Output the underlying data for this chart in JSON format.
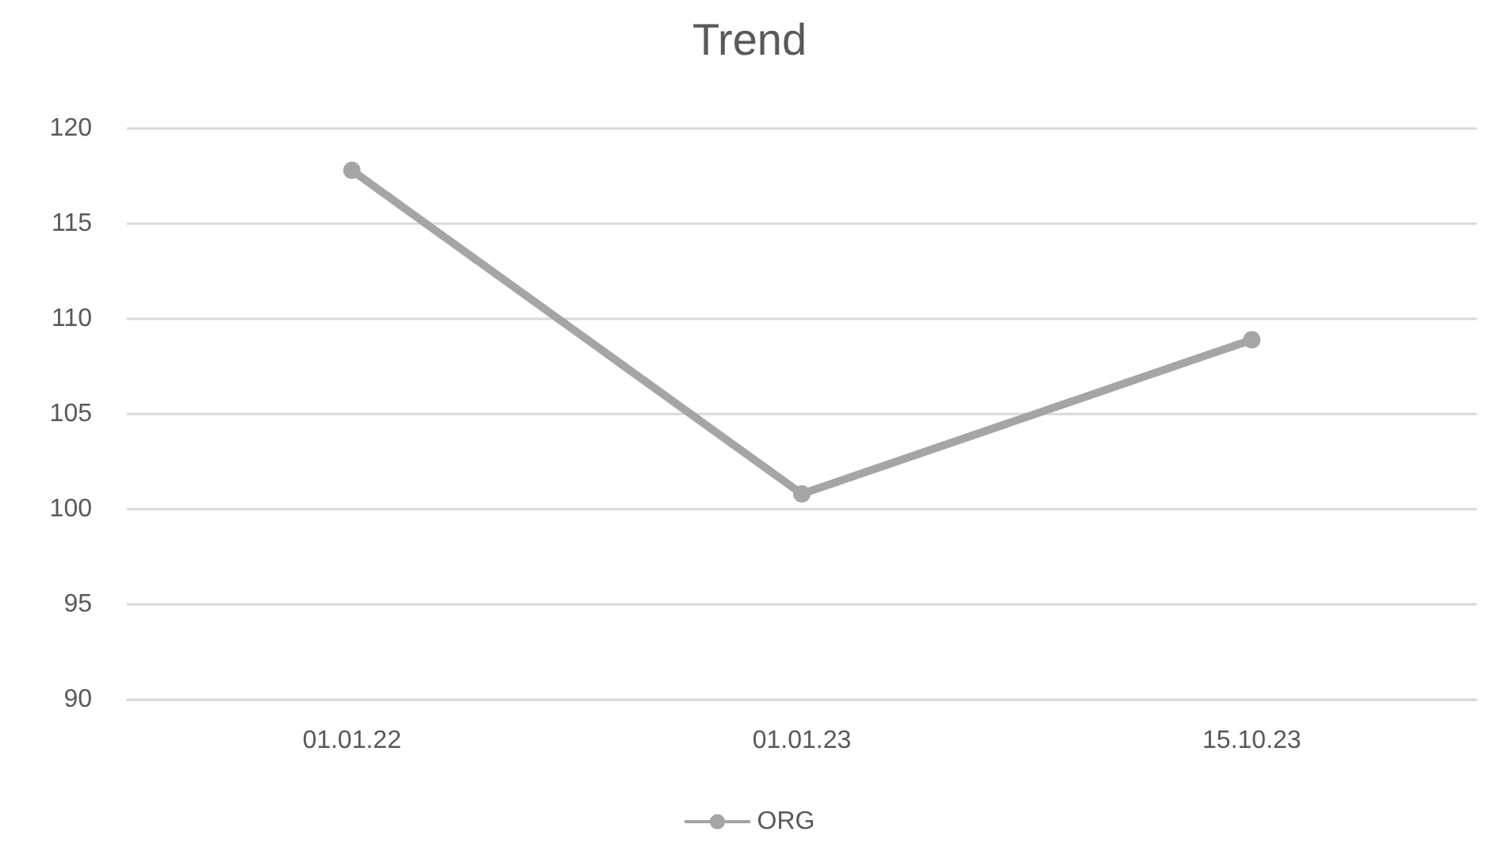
{
  "chart_data": {
    "type": "line",
    "title": "Trend",
    "categories": [
      "01.01.22",
      "01.01.23",
      "15.10.23"
    ],
    "series": [
      {
        "name": "ORG",
        "color": "#a5a5a5",
        "values": [
          117.8,
          100.8,
          108.9
        ]
      }
    ],
    "ylim": [
      90,
      120
    ],
    "yticks": [
      90,
      95,
      100,
      105,
      110,
      115,
      120
    ],
    "grid": "y",
    "legend": "bottom",
    "marker": "circle",
    "line_style": "solid"
  }
}
